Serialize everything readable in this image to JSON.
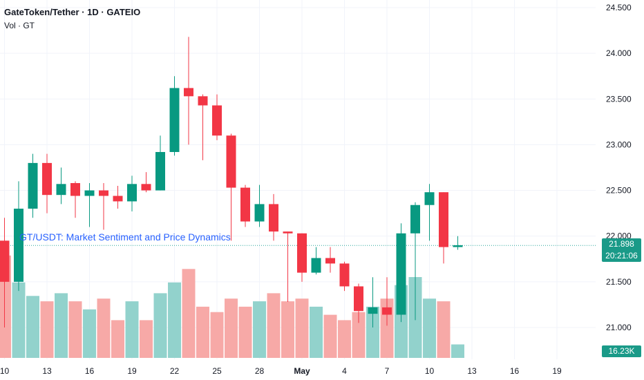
{
  "header": {
    "title": "GateToken/Tether · 1D · GATEIO",
    "volume_label": "Vol · GT"
  },
  "overlay": {
    "idea_text": "GT/USDT: Market Sentiment and Price Dynamics"
  },
  "badges": {
    "last_price": "21.898",
    "countdown": "20:21:06",
    "volume": "16.23K"
  },
  "colors": {
    "up": "#089981",
    "down": "#f23645",
    "up_volume": "#92d2cc",
    "down_volume": "#f7a9a7",
    "price_line": "#26a69a",
    "grid": "#f0f3fa"
  },
  "chart_data": {
    "type": "candlestick",
    "symbol": "GateToken/Tether",
    "interval": "1D",
    "exchange": "GATEIO",
    "ylim": [
      20.8,
      24.55
    ],
    "y_ticks": [
      "21.000",
      "21.500",
      "22.000",
      "22.500",
      "23.000",
      "23.500",
      "24.000",
      "24.500"
    ],
    "x_ticks": [
      {
        "label": "10",
        "index": 0
      },
      {
        "label": "13",
        "index": 3
      },
      {
        "label": "16",
        "index": 6
      },
      {
        "label": "19",
        "index": 9
      },
      {
        "label": "22",
        "index": 12
      },
      {
        "label": "25",
        "index": 15
      },
      {
        "label": "28",
        "index": 18
      },
      {
        "label": "May",
        "index": 21
      },
      {
        "label": "4",
        "index": 24
      },
      {
        "label": "7",
        "index": 27
      },
      {
        "label": "10",
        "index": 30
      },
      {
        "label": "13",
        "index": 33
      },
      {
        "label": "16",
        "index": 36
      },
      {
        "label": "19",
        "index": 39
      }
    ],
    "last_price": 21.898,
    "candles": [
      {
        "o": 21.95,
        "h": 22.2,
        "l": 21.0,
        "c": 21.5,
        "v": 1.9
      },
      {
        "o": 21.5,
        "h": 22.6,
        "l": 21.4,
        "c": 22.3,
        "v": 1.4
      },
      {
        "o": 22.3,
        "h": 22.9,
        "l": 22.2,
        "c": 22.8,
        "v": 1.15
      },
      {
        "o": 22.8,
        "h": 22.9,
        "l": 22.25,
        "c": 22.45,
        "v": 1.05
      },
      {
        "o": 22.45,
        "h": 22.75,
        "l": 22.35,
        "c": 22.57,
        "v": 1.2
      },
      {
        "o": 22.58,
        "h": 22.6,
        "l": 22.2,
        "c": 22.44,
        "v": 1.05
      },
      {
        "o": 22.44,
        "h": 22.58,
        "l": 22.1,
        "c": 22.5,
        "v": 0.9
      },
      {
        "o": 22.5,
        "h": 22.58,
        "l": 22.07,
        "c": 22.44,
        "v": 1.1
      },
      {
        "o": 22.44,
        "h": 22.55,
        "l": 22.3,
        "c": 22.38,
        "v": 0.7
      },
      {
        "o": 22.38,
        "h": 22.66,
        "l": 22.27,
        "c": 22.57,
        "v": 1.05
      },
      {
        "o": 22.57,
        "h": 22.7,
        "l": 22.48,
        "c": 22.5,
        "v": 0.7
      },
      {
        "o": 22.5,
        "h": 23.1,
        "l": 22.5,
        "c": 22.92,
        "v": 1.2
      },
      {
        "o": 22.92,
        "h": 23.75,
        "l": 22.88,
        "c": 23.62,
        "v": 1.4
      },
      {
        "o": 23.62,
        "h": 24.18,
        "l": 23.0,
        "c": 23.53,
        "v": 1.65
      },
      {
        "o": 23.53,
        "h": 23.55,
        "l": 22.83,
        "c": 23.43,
        "v": 0.95
      },
      {
        "o": 23.43,
        "h": 23.55,
        "l": 23.05,
        "c": 23.1,
        "v": 0.85
      },
      {
        "o": 23.1,
        "h": 23.12,
        "l": 21.95,
        "c": 22.53,
        "v": 1.1
      },
      {
        "o": 22.53,
        "h": 22.56,
        "l": 22.1,
        "c": 22.16,
        "v": 0.95
      },
      {
        "o": 22.16,
        "h": 22.56,
        "l": 22.1,
        "c": 22.35,
        "v": 1.05
      },
      {
        "o": 22.35,
        "h": 22.46,
        "l": 21.95,
        "c": 22.05,
        "v": 1.2
      },
      {
        "o": 22.05,
        "h": 22.05,
        "l": 21.28,
        "c": 22.03,
        "v": 1.05
      },
      {
        "o": 22.03,
        "h": 22.03,
        "l": 21.5,
        "c": 21.6,
        "v": 1.1
      },
      {
        "o": 21.6,
        "h": 21.88,
        "l": 21.58,
        "c": 21.76,
        "v": 0.95
      },
      {
        "o": 21.76,
        "h": 21.88,
        "l": 21.6,
        "c": 21.7,
        "v": 0.8
      },
      {
        "o": 21.7,
        "h": 21.72,
        "l": 21.4,
        "c": 21.45,
        "v": 0.7
      },
      {
        "o": 21.45,
        "h": 21.48,
        "l": 21.05,
        "c": 21.18,
        "v": 0.85
      },
      {
        "o": 21.15,
        "h": 21.55,
        "l": 21.0,
        "c": 21.22,
        "v": 0.95
      },
      {
        "o": 21.22,
        "h": 21.55,
        "l": 21.02,
        "c": 21.14,
        "v": 1.1
      },
      {
        "o": 21.14,
        "h": 22.14,
        "l": 21.06,
        "c": 22.03,
        "v": 1.35
      },
      {
        "o": 22.03,
        "h": 22.37,
        "l": 21.08,
        "c": 22.34,
        "v": 1.5
      },
      {
        "o": 22.34,
        "h": 22.57,
        "l": 21.95,
        "c": 22.48,
        "v": 1.1
      },
      {
        "o": 22.48,
        "h": 22.48,
        "l": 21.7,
        "c": 21.88,
        "v": 1.05
      },
      {
        "o": 21.88,
        "h": 22.0,
        "l": 21.85,
        "c": 21.9,
        "v": 0.25
      }
    ]
  }
}
